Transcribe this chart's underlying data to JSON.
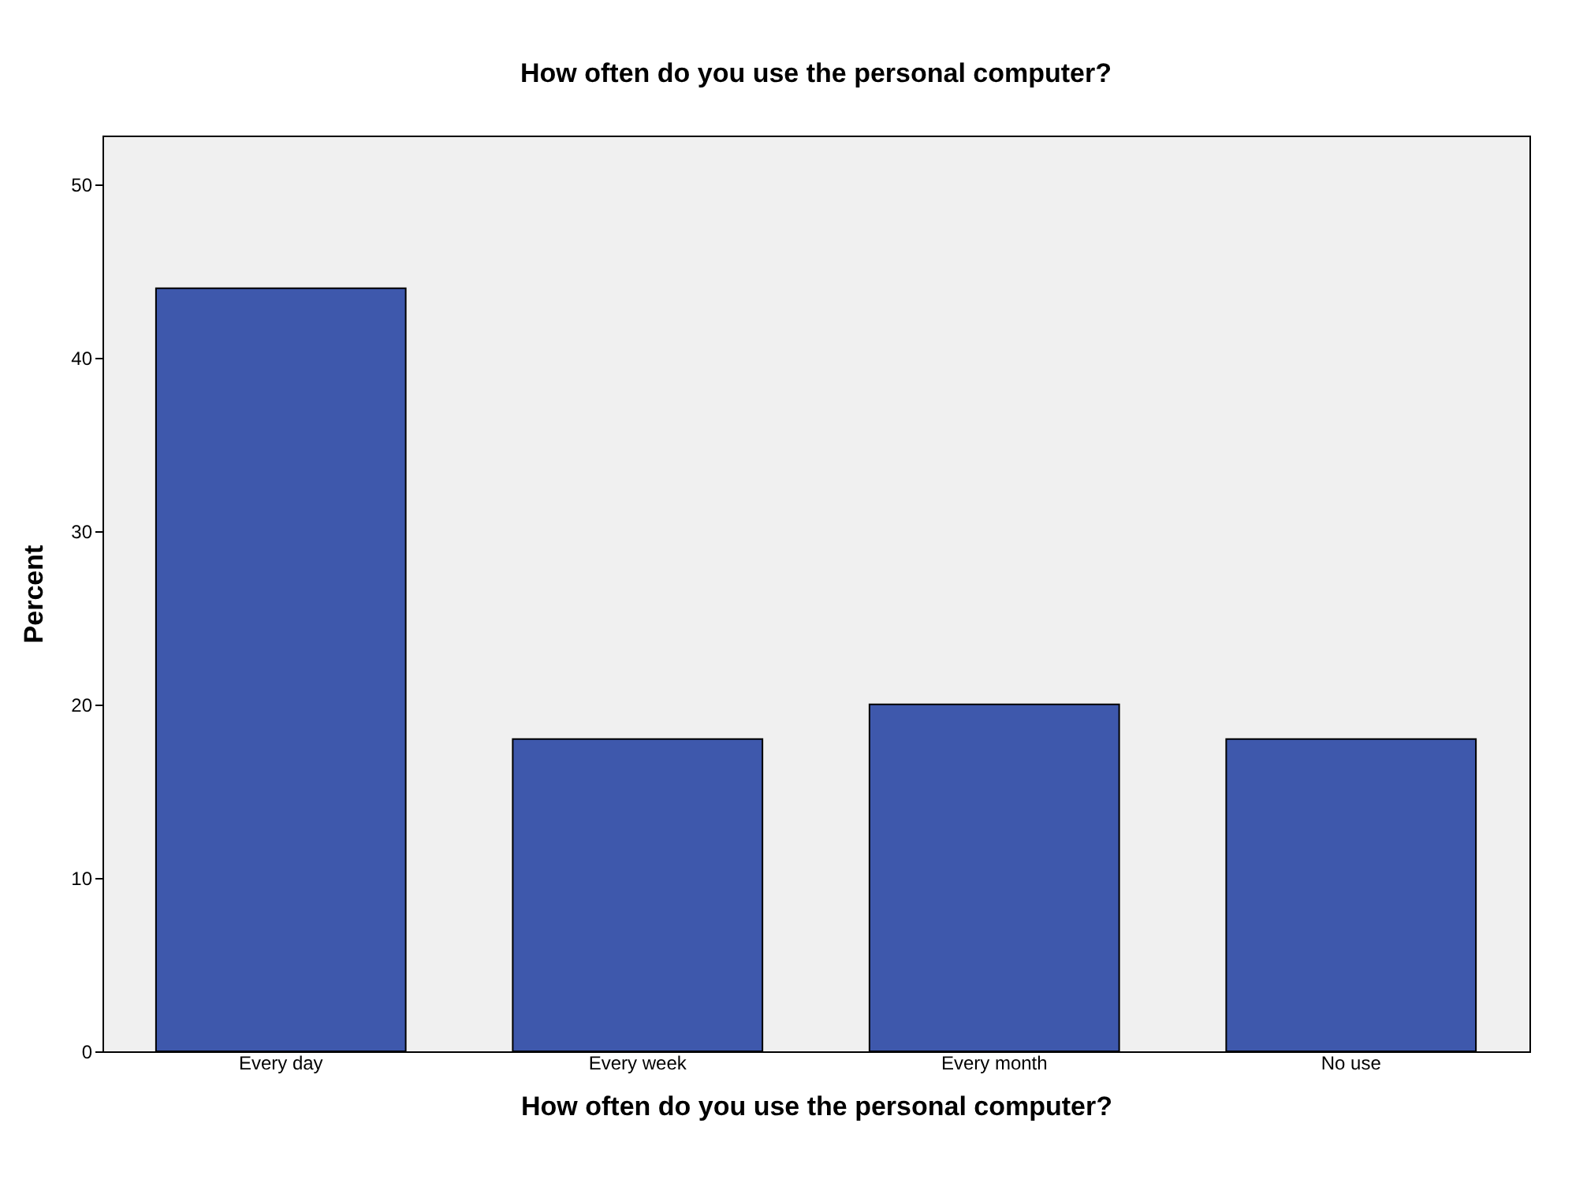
{
  "chart_data": {
    "type": "bar",
    "title": "How often do you use the personal computer?",
    "xlabel": "How often do you use the personal computer?",
    "ylabel": "Percent",
    "categories": [
      "Every day",
      "Every week",
      "Every month",
      "No use"
    ],
    "values": [
      44,
      18,
      20,
      18
    ],
    "color": "#3e58ac",
    "ylim": [
      0,
      52.8
    ],
    "yticks": [
      0,
      10,
      20,
      30,
      40,
      50
    ],
    "grid": false
  }
}
